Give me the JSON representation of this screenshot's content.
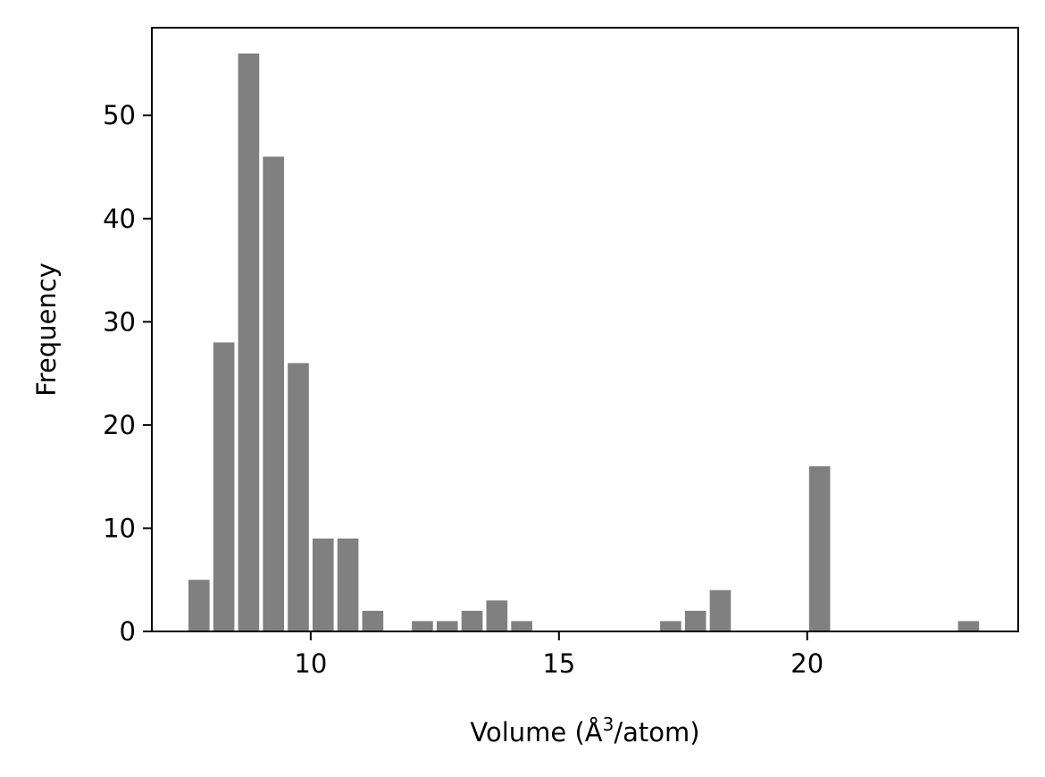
{
  "chart_data": {
    "type": "bar",
    "title": "",
    "xlabel": "Volume (Å",
    "xlabel_sup": "3",
    "xlabel_suffix": "/atom)",
    "ylabel": "Frequency",
    "xlim": [
      6.8,
      24.25
    ],
    "ylim": [
      0,
      58.5
    ],
    "xticks": [
      10,
      15,
      20
    ],
    "yticks": [
      0,
      10,
      20,
      30,
      40,
      50
    ],
    "grid": false,
    "legend": "none",
    "bin_width": 0.5,
    "bar_color": "#808080",
    "x": [
      7.75,
      8.25,
      8.75,
      9.25,
      9.75,
      10.25,
      10.75,
      11.25,
      12.25,
      12.75,
      13.25,
      13.75,
      14.25,
      17.25,
      17.75,
      18.25,
      20.25,
      23.25
    ],
    "values": [
      5,
      28,
      56,
      46,
      26,
      9,
      9,
      2,
      1,
      1,
      2,
      3,
      1,
      1,
      2,
      4,
      16,
      1
    ]
  }
}
